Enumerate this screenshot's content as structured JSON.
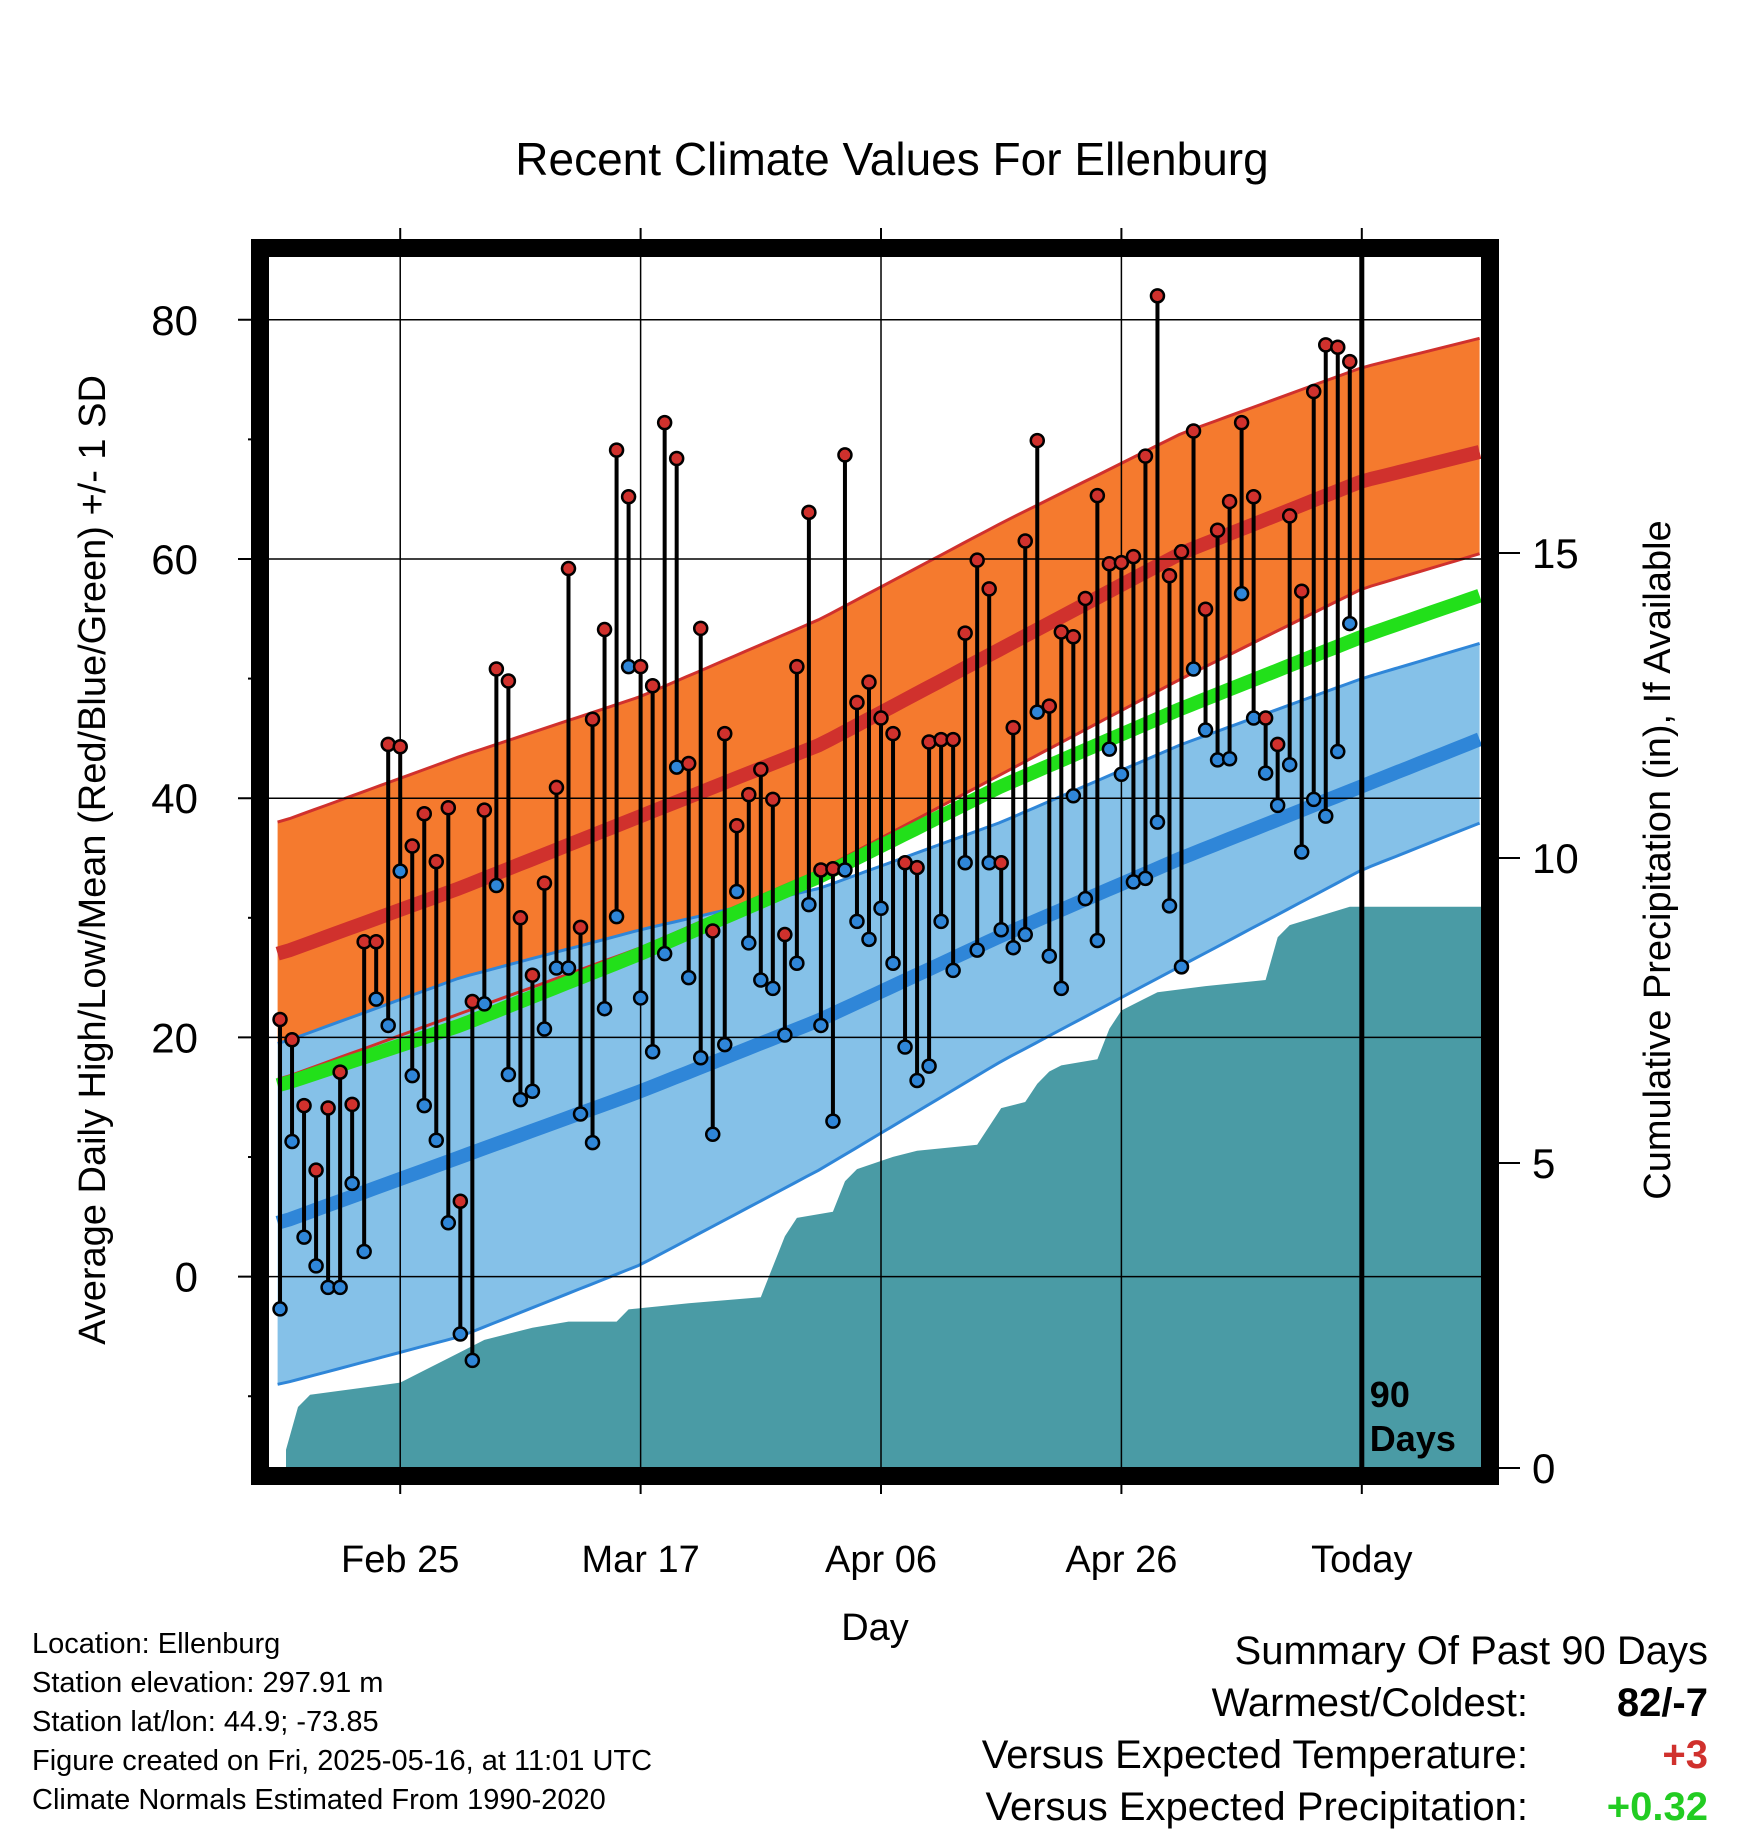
{
  "chart_data": {
    "type": "line",
    "title": "Recent Climate Values For Ellenburg",
    "xlabel": "Day",
    "ylabel": "Average Daily High/Low/Mean (Red/Blue/Green) +/- 1 SD",
    "y2label": "Cumulative Precipitation (in), If Available",
    "ylim": [
      -16,
      86
    ],
    "y2lim": [
      0,
      20
    ],
    "x_ticks": [
      {
        "day": 10,
        "label": "Feb 25"
      },
      {
        "day": 30,
        "label": "Mar 17"
      },
      {
        "day": 50,
        "label": "Apr 06"
      },
      {
        "day": 70,
        "label": "Apr 26"
      },
      {
        "day": 90,
        "label": "Today"
      }
    ],
    "y_ticks": [
      0,
      20,
      40,
      60,
      80
    ],
    "y2_ticks": [
      0,
      5,
      10,
      15
    ],
    "grid": true,
    "today_marker": {
      "day": 90,
      "label_line1": "90",
      "label_line2": "Days"
    },
    "normals": {
      "high_mean": [
        [
          0,
          27.0
        ],
        [
          15,
          32.5
        ],
        [
          30,
          38.5
        ],
        [
          45,
          44.5
        ],
        [
          60,
          52.5
        ],
        [
          75,
          60.5
        ],
        [
          90,
          66.5
        ],
        [
          100,
          69.0
        ]
      ],
      "high_upper": [
        [
          0,
          38.0
        ],
        [
          15,
          43.5
        ],
        [
          30,
          48.5
        ],
        [
          45,
          55.0
        ],
        [
          60,
          63.0
        ],
        [
          75,
          70.5
        ],
        [
          90,
          76.0
        ],
        [
          100,
          78.5
        ]
      ],
      "high_lower": [
        [
          0,
          16.5
        ],
        [
          15,
          22.0
        ],
        [
          30,
          27.5
        ],
        [
          45,
          34.0
        ],
        [
          60,
          42.0
        ],
        [
          75,
          50.0
        ],
        [
          90,
          57.5
        ],
        [
          100,
          60.5
        ]
      ],
      "low_mean": [
        [
          0,
          4.5
        ],
        [
          15,
          10.0
        ],
        [
          30,
          15.5
        ],
        [
          45,
          21.5
        ],
        [
          60,
          28.5
        ],
        [
          75,
          35.0
        ],
        [
          90,
          41.0
        ],
        [
          100,
          45.0
        ]
      ],
      "low_upper": [
        [
          0,
          19.5
        ],
        [
          15,
          25.0
        ],
        [
          30,
          29.0
        ],
        [
          45,
          32.5
        ],
        [
          60,
          38.0
        ],
        [
          75,
          44.5
        ],
        [
          90,
          50.0
        ],
        [
          100,
          53.0
        ]
      ],
      "low_lower": [
        [
          0,
          -9.0
        ],
        [
          15,
          -5.0
        ],
        [
          30,
          1.0
        ],
        [
          45,
          9.0
        ],
        [
          60,
          18.0
        ],
        [
          75,
          26.0
        ],
        [
          90,
          34.0
        ],
        [
          100,
          38.0
        ]
      ],
      "mean": [
        [
          0,
          16.0
        ],
        [
          15,
          21.0
        ],
        [
          30,
          27.0
        ],
        [
          45,
          33.5
        ],
        [
          60,
          41.0
        ],
        [
          75,
          47.5
        ],
        [
          90,
          53.5
        ],
        [
          100,
          57.0
        ]
      ]
    },
    "series": [
      {
        "name": "High",
        "color": "#d0312d",
        "values": [
          21.5,
          19.8,
          14.3,
          8.9,
          14.1,
          17.1,
          14.4,
          28.0,
          28.0,
          44.5,
          44.3,
          36.0,
          38.7,
          34.7,
          39.2,
          6.3,
          23.0,
          39.0,
          50.8,
          49.8,
          30.0,
          25.2,
          32.9,
          40.9,
          59.2,
          29.2,
          46.6,
          54.1,
          69.1,
          65.2,
          51.0,
          49.4,
          71.4,
          68.4,
          42.9,
          54.2,
          28.9,
          45.4,
          37.7,
          40.3,
          42.4,
          39.9,
          28.6,
          51.0,
          63.9,
          34.0,
          34.1,
          68.7,
          48.0,
          49.7,
          46.7,
          45.4,
          34.6,
          34.2,
          44.7,
          44.9,
          44.9,
          53.8,
          59.9,
          57.5,
          34.6,
          45.9,
          61.5,
          69.9,
          47.7,
          53.9,
          53.5,
          56.7,
          65.3,
          59.6,
          59.7,
          60.2,
          68.6,
          82.0,
          58.6,
          60.6,
          70.7,
          55.8,
          62.4,
          64.8,
          71.4,
          65.2,
          46.7,
          44.5,
          63.6,
          57.3,
          74.0,
          77.9,
          77.7,
          76.5
        ]
      },
      {
        "name": "Low",
        "color": "#2f86d8",
        "values": [
          -2.7,
          11.3,
          3.3,
          0.9,
          -0.9,
          -0.9,
          7.8,
          2.1,
          23.2,
          21.0,
          33.9,
          16.8,
          14.3,
          11.4,
          4.5,
          -4.8,
          -7.0,
          22.8,
          32.7,
          16.9,
          14.8,
          15.5,
          20.7,
          25.8,
          25.8,
          13.6,
          11.2,
          22.4,
          30.1,
          51.0,
          23.3,
          18.8,
          27.0,
          42.6,
          25.0,
          18.3,
          11.9,
          19.4,
          32.2,
          27.9,
          24.8,
          24.1,
          20.2,
          26.2,
          31.1,
          21.0,
          13.0,
          34.0,
          29.7,
          28.2,
          30.8,
          26.2,
          19.2,
          16.4,
          17.6,
          29.7,
          25.6,
          34.6,
          27.3,
          34.6,
          29.0,
          27.5,
          28.6,
          47.2,
          26.8,
          24.1,
          40.2,
          31.6,
          28.1,
          44.1,
          42.0,
          33.0,
          33.3,
          38.0,
          31.0,
          25.9,
          50.8,
          45.7,
          43.2,
          43.3,
          57.1,
          46.7,
          42.1,
          39.4,
          42.8,
          35.5,
          39.9,
          38.5,
          43.9,
          54.6
        ]
      },
      {
        "name": "Cumulative Precipitation",
        "color": "#4a9ba5",
        "axis": "y2",
        "x": [
          0.5,
          1.5,
          2.5,
          10,
          12,
          14,
          17,
          21,
          24,
          28,
          29,
          34,
          40,
          41,
          42,
          43,
          46,
          47,
          48,
          51,
          53,
          58,
          60,
          62,
          63,
          64,
          65,
          68,
          69,
          70,
          71,
          73,
          77,
          82,
          83,
          84,
          89,
          100
        ],
        "values": [
          0.3,
          1.0,
          1.2,
          1.4,
          1.6,
          1.8,
          2.1,
          2.3,
          2.4,
          2.4,
          2.6,
          2.7,
          2.8,
          3.3,
          3.8,
          4.1,
          4.2,
          4.7,
          4.9,
          5.1,
          5.2,
          5.3,
          5.9,
          6.0,
          6.3,
          6.5,
          6.6,
          6.7,
          7.2,
          7.5,
          7.6,
          7.8,
          7.9,
          8.0,
          8.7,
          8.9,
          9.2,
          9.2
        ]
      }
    ]
  },
  "footer": {
    "location": "Location: Ellenburg",
    "elevation": "Station elevation: 297.91 m",
    "latlon": "Station lat/lon: 44.9; -73.85",
    "created": "Figure created on Fri, 2025-05-16, at 11:01 UTC",
    "normals": "Climate Normals Estimated From 1990-2020"
  },
  "summary": {
    "title": "Summary Of Past 90 Days",
    "warmest_label": "Warmest/Coldest:",
    "warmest_value": "82/-7",
    "temp_label": "Versus Expected Temperature:",
    "temp_value": "+3",
    "temp_color": "#d0312d",
    "precip_label": "Versus Expected Precipitation:",
    "precip_value": "+0.32",
    "precip_color": "#22cc22"
  }
}
